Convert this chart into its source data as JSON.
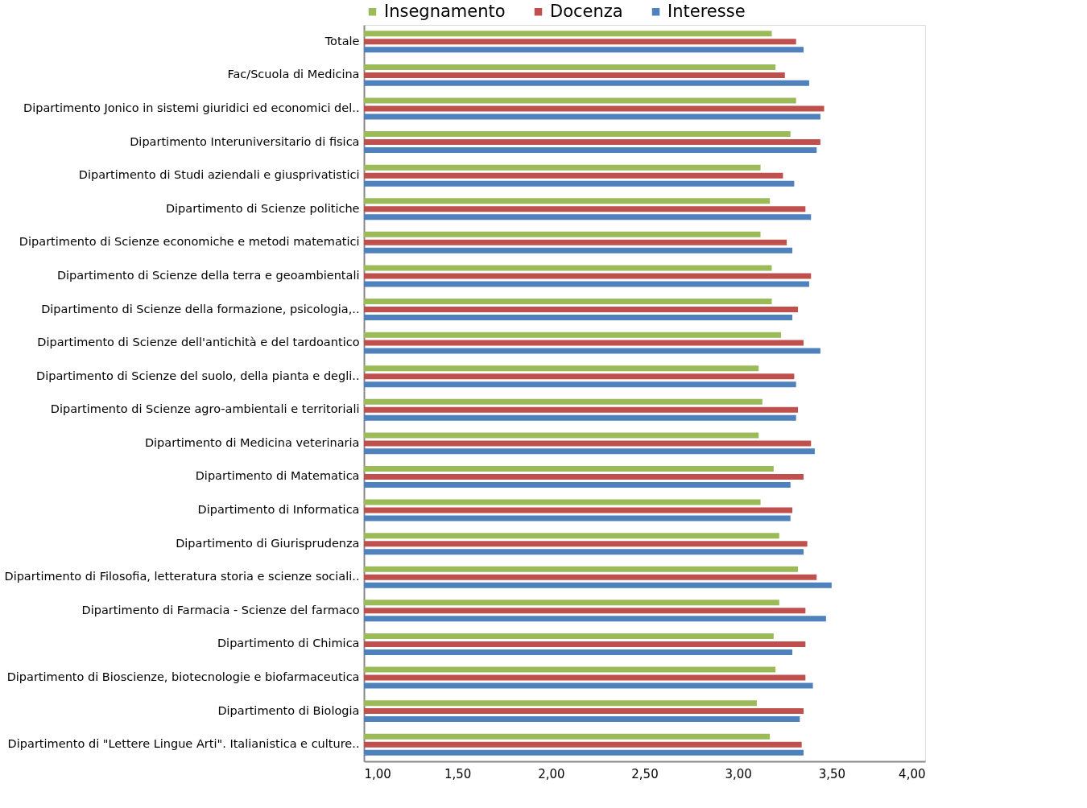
{
  "chart_data": {
    "type": "bar",
    "orientation": "horizontal",
    "legend": "top",
    "grid": false,
    "categories": [
      "Totale",
      "Fac/Scuola di Medicina",
      "Dipartimento Jonico in sistemi giuridici ed economici del..",
      "Dipartimento Interuniversitario di fisica",
      "Dipartimento di Studi aziendali e giusprivatistici",
      "Dipartimento di Scienze politiche",
      "Dipartimento di Scienze economiche e metodi matematici",
      "Dipartimento di Scienze della terra e geoambientali",
      "Dipartimento di Scienze della formazione, psicologia,..",
      "Dipartimento di Scienze dell'antichità e del tardoantico",
      "Dipartimento di Scienze del suolo, della pianta e degli..",
      "Dipartimento di Scienze agro-ambientali e territoriali",
      "Dipartimento di Medicina veterinaria",
      "Dipartimento di Matematica",
      "Dipartimento di Informatica",
      "Dipartimento di Giurisprudenza",
      "Dipartimento di Filosofia, letteratura storia e scienze sociali..",
      "Dipartimento di Farmacia - Scienze del farmaco",
      "Dipartimento di Chimica",
      "Dipartimento di Bioscienze, biotecnologie e biofarmaceutica",
      "Dipartimento di Biologia",
      "Dipartimento di \"Lettere Lingue Arti\". Italianistica e culture.."
    ],
    "series": [
      {
        "name": "Insegnamento",
        "color": "#9bbb59",
        "values": [
          3.18,
          3.2,
          3.31,
          3.28,
          3.12,
          3.17,
          3.12,
          3.18,
          3.18,
          3.23,
          3.11,
          3.13,
          3.11,
          3.19,
          3.12,
          3.22,
          3.32,
          3.22,
          3.19,
          3.2,
          3.1,
          3.17
        ]
      },
      {
        "name": "Docenza",
        "color": "#c0504d",
        "values": [
          3.31,
          3.25,
          3.46,
          3.44,
          3.24,
          3.36,
          3.26,
          3.39,
          3.32,
          3.35,
          3.3,
          3.32,
          3.39,
          3.35,
          3.29,
          3.37,
          3.42,
          3.36,
          3.36,
          3.36,
          3.35,
          3.34
        ]
      },
      {
        "name": "Interesse",
        "color": "#4f81bd",
        "values": [
          3.35,
          3.38,
          3.44,
          3.42,
          3.3,
          3.39,
          3.29,
          3.38,
          3.29,
          3.44,
          3.31,
          3.31,
          3.41,
          3.28,
          3.28,
          3.35,
          3.5,
          3.47,
          3.29,
          3.4,
          3.33,
          3.35
        ]
      }
    ],
    "xlim": [
      1.0,
      4.0
    ],
    "xticks": [
      {
        "value": 1.0,
        "label": "1,00"
      },
      {
        "value": 1.5,
        "label": "1,50"
      },
      {
        "value": 2.0,
        "label": "2,00"
      },
      {
        "value": 2.5,
        "label": "2,50"
      },
      {
        "value": 3.0,
        "label": "3,00"
      },
      {
        "value": 3.5,
        "label": "3,50"
      },
      {
        "value": 4.0,
        "label": "4,00"
      }
    ]
  }
}
